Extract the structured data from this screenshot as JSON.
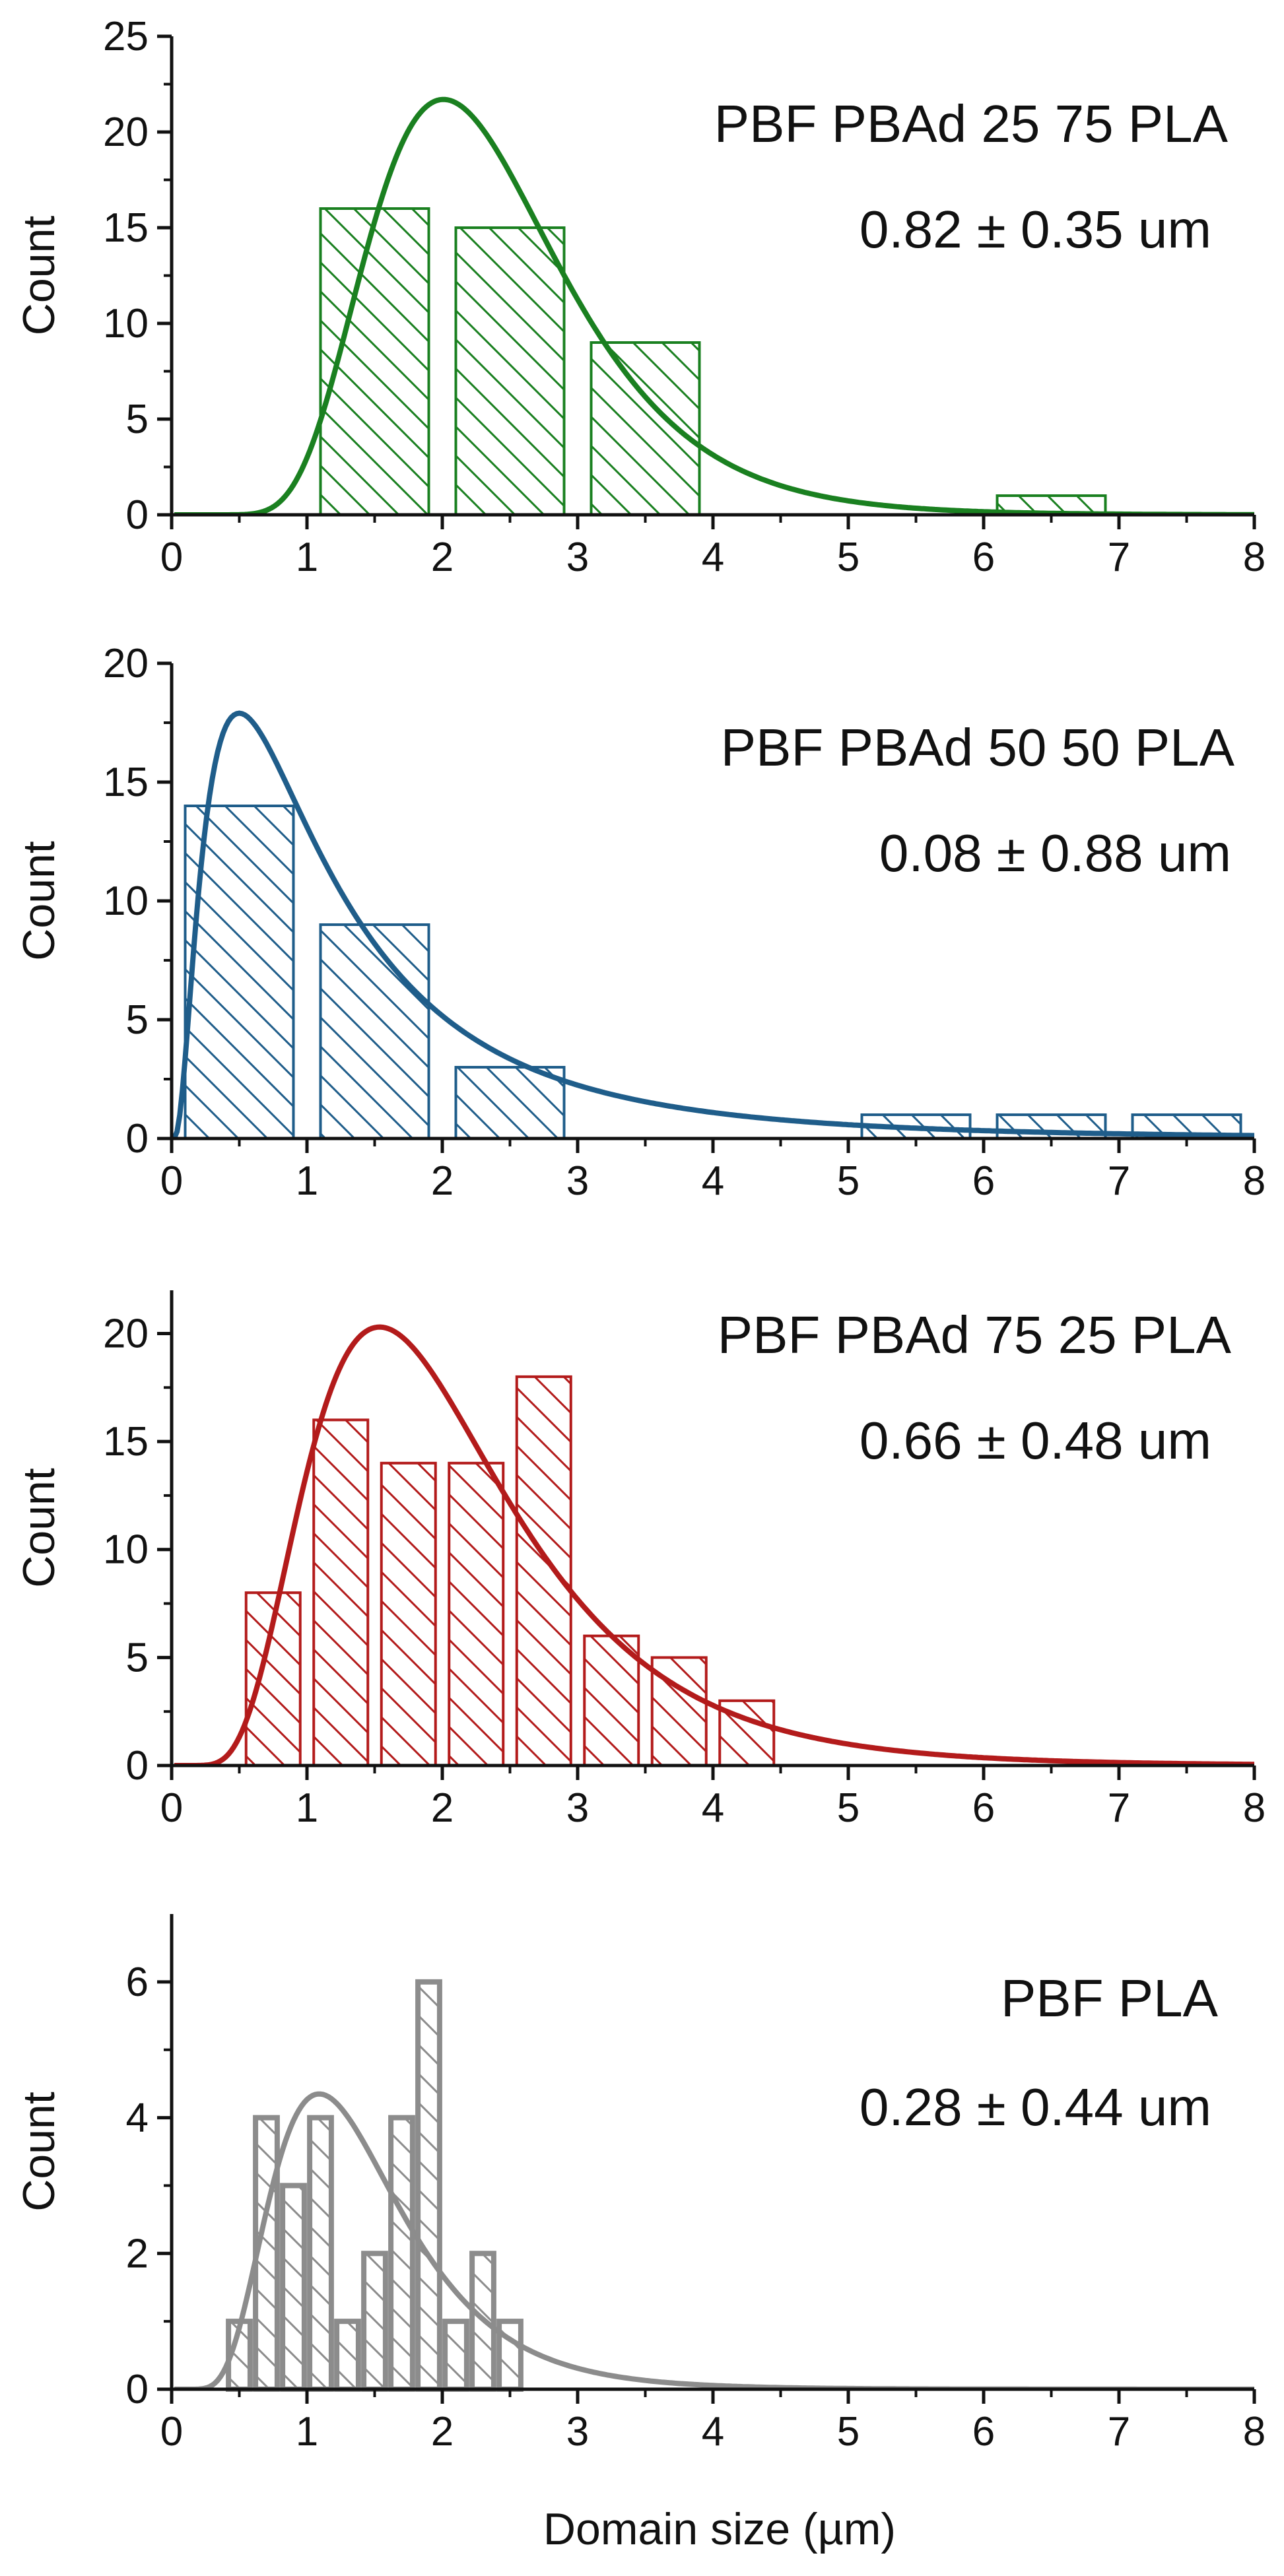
{
  "figure": {
    "xlabel": "Domain size (µm)"
  },
  "chart_data": [
    {
      "type": "bar",
      "title": "PBF PBAd 25 75 PLA",
      "annotation": "0.82 ± 0.35 um",
      "xlabel": "",
      "ylabel": "Count",
      "xlim": [
        0,
        8
      ],
      "ylim": [
        0,
        25
      ],
      "xticks": [
        0,
        1,
        2,
        3,
        4,
        5,
        6,
        7,
        8
      ],
      "yticks": [
        0,
        5,
        10,
        15,
        20,
        25
      ],
      "color": "#1a8020",
      "bins": [
        {
          "start": 1.1,
          "end": 1.9,
          "count": 16
        },
        {
          "start": 2.1,
          "end": 2.9,
          "count": 15
        },
        {
          "start": 3.1,
          "end": 3.9,
          "count": 9
        },
        {
          "start": 6.1,
          "end": 6.9,
          "count": 1
        }
      ],
      "fit": {
        "type": "lognormal",
        "mu": 0.82,
        "sigma": 0.35,
        "peak_x": 2.0,
        "peak_y": 21.7
      }
    },
    {
      "type": "bar",
      "title": "PBF PBAd 50 50 PLA",
      "annotation": "0.08 ± 0.88 um",
      "xlabel": "",
      "ylabel": "Count",
      "xlim": [
        0,
        8
      ],
      "ylim": [
        0,
        20
      ],
      "xticks": [
        0,
        1,
        2,
        3,
        4,
        5,
        6,
        7,
        8
      ],
      "yticks": [
        0,
        5,
        10,
        15,
        20
      ],
      "color": "#1f5d8a",
      "bins": [
        {
          "start": 0.1,
          "end": 0.9,
          "count": 14
        },
        {
          "start": 1.1,
          "end": 1.9,
          "count": 9
        },
        {
          "start": 2.1,
          "end": 2.9,
          "count": 3
        },
        {
          "start": 5.1,
          "end": 5.9,
          "count": 1
        },
        {
          "start": 6.1,
          "end": 6.9,
          "count": 1
        },
        {
          "start": 7.1,
          "end": 7.9,
          "count": 1
        }
      ],
      "fit": {
        "type": "lognormal",
        "mu": 0.08,
        "sigma": 0.88,
        "peak_x": 0.5,
        "peak_y": 17.9
      }
    },
    {
      "type": "bar",
      "title": "PBF PBAd 75 25 PLA",
      "annotation": "0.66 ± 0.48 um",
      "xlabel": "",
      "ylabel": "Count",
      "xlim": [
        0,
        8
      ],
      "ylim": [
        0,
        22
      ],
      "xticks": [
        0,
        1,
        2,
        3,
        4,
        5,
        6,
        7,
        8
      ],
      "yticks": [
        0,
        5,
        10,
        15,
        20
      ],
      "color": "#b31b1b",
      "bins": [
        {
          "start": 0.55,
          "end": 0.95,
          "count": 8
        },
        {
          "start": 1.05,
          "end": 1.45,
          "count": 16
        },
        {
          "start": 1.55,
          "end": 1.95,
          "count": 14
        },
        {
          "start": 2.05,
          "end": 2.45,
          "count": 14
        },
        {
          "start": 2.55,
          "end": 2.95,
          "count": 18
        },
        {
          "start": 3.05,
          "end": 3.45,
          "count": 6
        },
        {
          "start": 3.55,
          "end": 3.95,
          "count": 5
        },
        {
          "start": 4.05,
          "end": 4.45,
          "count": 3
        }
      ],
      "fit": {
        "type": "lognormal",
        "mu": 0.66,
        "sigma": 0.48,
        "peak_x": 1.55,
        "peak_y": 20.3
      }
    },
    {
      "type": "bar",
      "title": "PBF PLA",
      "annotation": "0.28 ± 0.44 um",
      "xlabel": "Domain size (µm)",
      "ylabel": "Count",
      "xlim": [
        0,
        8
      ],
      "ylim": [
        0,
        7
      ],
      "xticks": [
        0,
        1,
        2,
        3,
        4,
        5,
        6,
        7,
        8
      ],
      "yticks": [
        0,
        2,
        4,
        6
      ],
      "color": "#8c8c8c",
      "bins": [
        {
          "start": 0.42,
          "end": 0.58,
          "count": 1
        },
        {
          "start": 0.62,
          "end": 0.78,
          "count": 4
        },
        {
          "start": 0.82,
          "end": 0.98,
          "count": 3
        },
        {
          "start": 1.02,
          "end": 1.18,
          "count": 4
        },
        {
          "start": 1.22,
          "end": 1.38,
          "count": 1
        },
        {
          "start": 1.42,
          "end": 1.58,
          "count": 2
        },
        {
          "start": 1.62,
          "end": 1.78,
          "count": 4
        },
        {
          "start": 1.82,
          "end": 1.98,
          "count": 6
        },
        {
          "start": 2.02,
          "end": 2.18,
          "count": 1
        },
        {
          "start": 2.22,
          "end": 2.38,
          "count": 2
        },
        {
          "start": 2.42,
          "end": 2.58,
          "count": 1
        }
      ],
      "fit": {
        "type": "lognormal",
        "mu": 0.28,
        "sigma": 0.44,
        "peak_x": 1.1,
        "peak_y": 4.35
      }
    }
  ]
}
